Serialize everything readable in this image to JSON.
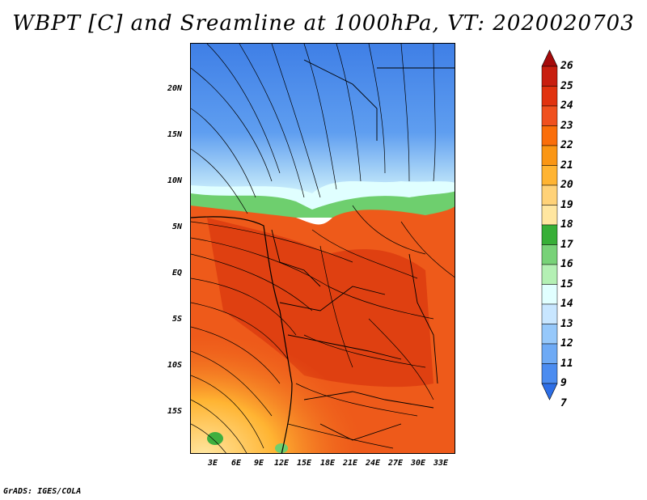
{
  "title": "WBPT [C] and Sreamline at 1000hPa, VT: 2020020703",
  "footer": "GrADS: IGES/COLA",
  "map": {
    "lat_ticks": [
      "20N",
      "15N",
      "10N",
      "5N",
      "EQ",
      "5S",
      "10S",
      "15S"
    ],
    "lon_ticks": [
      "3E",
      "6E",
      "9E",
      "12E",
      "15E",
      "18E",
      "21E",
      "24E",
      "27E",
      "30E",
      "33E"
    ]
  },
  "colorbar": {
    "labels": [
      "26",
      "25",
      "24",
      "23",
      "22",
      "21",
      "20",
      "19",
      "18",
      "17",
      "16",
      "15",
      "14",
      "13",
      "12",
      "11",
      "9",
      "7"
    ],
    "colors": [
      "#a50a0a",
      "#c81e0f",
      "#e1320f",
      "#f0501e",
      "#fa6e0a",
      "#fa9614",
      "#ffb432",
      "#ffd278",
      "#ffe6a0",
      "#37af37",
      "#78d278",
      "#b4f0b4",
      "#e1ffff",
      "#c8e6ff",
      "#96c8fa",
      "#6eaaf5",
      "#4b8cf0",
      "#2d6ee6"
    ]
  }
}
